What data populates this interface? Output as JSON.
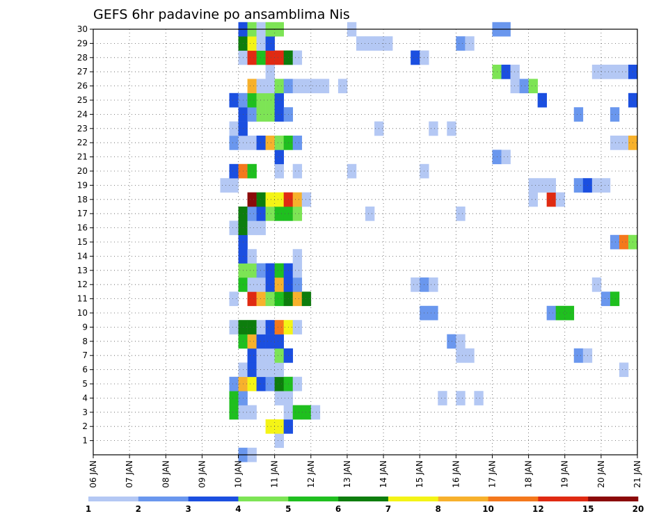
{
  "chart_data": {
    "type": "heatmap",
    "title": "GEFS 6hr padavine po ansamblima Nis",
    "xlabel": "",
    "ylabel": "",
    "x_range": [
      0,
      60
    ],
    "steps_per_day": 4,
    "x_ticks": [
      {
        "label": "06 JAN",
        "step": 0
      },
      {
        "label": "07 JAN",
        "step": 4
      },
      {
        "label": "08 JAN",
        "step": 8
      },
      {
        "label": "09 JAN",
        "step": 12
      },
      {
        "label": "10 JAN",
        "step": 16
      },
      {
        "label": "11 JAN",
        "step": 20
      },
      {
        "label": "12 JAN",
        "step": 24
      },
      {
        "label": "13 JAN",
        "step": 28
      },
      {
        "label": "14 JAN",
        "step": 32
      },
      {
        "label": "15 JAN",
        "step": 36
      },
      {
        "label": "16 JAN",
        "step": 40
      },
      {
        "label": "17 JAN",
        "step": 44
      },
      {
        "label": "18 JAN",
        "step": 48
      },
      {
        "label": "19 JAN",
        "step": 52
      },
      {
        "label": "20 JAN",
        "step": 56
      },
      {
        "label": "21 JAN",
        "step": 60
      }
    ],
    "y_range": [
      0,
      30
    ],
    "y_ticks": [
      1,
      2,
      3,
      4,
      5,
      6,
      7,
      8,
      9,
      10,
      11,
      12,
      13,
      14,
      15,
      16,
      17,
      18,
      19,
      20,
      21,
      22,
      23,
      24,
      25,
      26,
      27,
      28,
      29,
      30
    ],
    "grid": true,
    "colorbar": {
      "colors": [
        "#b4c8f4",
        "#6a97ee",
        "#1b4fe0",
        "#7de455",
        "#1fbf1f",
        "#0d7d0d",
        "#f4f416",
        "#f7b12c",
        "#f4781c",
        "#e02a12",
        "#8b0a0a"
      ],
      "labels": [
        "1",
        "2",
        "3",
        "4",
        "5",
        "6",
        "7",
        "8",
        "10",
        "12",
        "15",
        "20"
      ]
    },
    "cell_encoding": "[step_index, member, color_class 0-10]",
    "cells": [
      [
        16,
        0,
        1
      ],
      [
        17,
        0,
        0
      ],
      [
        20,
        1,
        0
      ],
      [
        19,
        2,
        6
      ],
      [
        20,
        2,
        6
      ],
      [
        21,
        2,
        2
      ],
      [
        15,
        3,
        4
      ],
      [
        16,
        3,
        0
      ],
      [
        17,
        3,
        0
      ],
      [
        21,
        3,
        0
      ],
      [
        22,
        3,
        4
      ],
      [
        23,
        3,
        4
      ],
      [
        24,
        3,
        0
      ],
      [
        15,
        4,
        4
      ],
      [
        16,
        4,
        1
      ],
      [
        20,
        4,
        0
      ],
      [
        21,
        4,
        0
      ],
      [
        38,
        4,
        0
      ],
      [
        40,
        4,
        0
      ],
      [
        42,
        4,
        0
      ],
      [
        15,
        5,
        1
      ],
      [
        16,
        5,
        7
      ],
      [
        17,
        5,
        6
      ],
      [
        18,
        5,
        2
      ],
      [
        19,
        5,
        1
      ],
      [
        20,
        5,
        5
      ],
      [
        21,
        5,
        4
      ],
      [
        22,
        5,
        0
      ],
      [
        16,
        6,
        0
      ],
      [
        17,
        6,
        2
      ],
      [
        18,
        6,
        0
      ],
      [
        19,
        6,
        0
      ],
      [
        20,
        6,
        0
      ],
      [
        58,
        6,
        0
      ],
      [
        17,
        7,
        2
      ],
      [
        18,
        7,
        0
      ],
      [
        19,
        7,
        0
      ],
      [
        20,
        7,
        3
      ],
      [
        21,
        7,
        2
      ],
      [
        40,
        7,
        0
      ],
      [
        41,
        7,
        0
      ],
      [
        53,
        7,
        1
      ],
      [
        54,
        7,
        0
      ],
      [
        16,
        8,
        4
      ],
      [
        17,
        8,
        7
      ],
      [
        18,
        8,
        2
      ],
      [
        19,
        8,
        2
      ],
      [
        20,
        8,
        2
      ],
      [
        39,
        8,
        1
      ],
      [
        40,
        8,
        0
      ],
      [
        15,
        9,
        0
      ],
      [
        16,
        9,
        5
      ],
      [
        17,
        9,
        5
      ],
      [
        18,
        9,
        0
      ],
      [
        19,
        9,
        2
      ],
      [
        20,
        9,
        8
      ],
      [
        21,
        9,
        6
      ],
      [
        22,
        9,
        0
      ],
      [
        36,
        10,
        1
      ],
      [
        37,
        10,
        1
      ],
      [
        50,
        10,
        1
      ],
      [
        51,
        10,
        4
      ],
      [
        52,
        10,
        4
      ],
      [
        15,
        11,
        0
      ],
      [
        17,
        11,
        9
      ],
      [
        18,
        11,
        7
      ],
      [
        19,
        11,
        3
      ],
      [
        20,
        11,
        4
      ],
      [
        21,
        11,
        5
      ],
      [
        22,
        11,
        7
      ],
      [
        23,
        11,
        5
      ],
      [
        56,
        11,
        1
      ],
      [
        57,
        11,
        4
      ],
      [
        16,
        12,
        4
      ],
      [
        17,
        12,
        0
      ],
      [
        18,
        12,
        0
      ],
      [
        19,
        12,
        2
      ],
      [
        20,
        12,
        7
      ],
      [
        21,
        12,
        2
      ],
      [
        22,
        12,
        1
      ],
      [
        35,
        12,
        0
      ],
      [
        36,
        12,
        1
      ],
      [
        37,
        12,
        0
      ],
      [
        55,
        12,
        0
      ],
      [
        16,
        13,
        3
      ],
      [
        17,
        13,
        3
      ],
      [
        18,
        13,
        1
      ],
      [
        19,
        13,
        2
      ],
      [
        20,
        13,
        4
      ],
      [
        21,
        13,
        2
      ],
      [
        22,
        13,
        0
      ],
      [
        16,
        14,
        2
      ],
      [
        17,
        14,
        0
      ],
      [
        22,
        14,
        0
      ],
      [
        16,
        15,
        2
      ],
      [
        57,
        15,
        1
      ],
      [
        58,
        15,
        8
      ],
      [
        59,
        15,
        3
      ],
      [
        15,
        16,
        0
      ],
      [
        16,
        16,
        5
      ],
      [
        17,
        16,
        0
      ],
      [
        18,
        16,
        0
      ],
      [
        16,
        17,
        5
      ],
      [
        17,
        17,
        1
      ],
      [
        18,
        17,
        2
      ],
      [
        19,
        17,
        3
      ],
      [
        20,
        17,
        4
      ],
      [
        21,
        17,
        4
      ],
      [
        22,
        17,
        3
      ],
      [
        30,
        17,
        0
      ],
      [
        40,
        17,
        0
      ],
      [
        17,
        18,
        10
      ],
      [
        18,
        18,
        5
      ],
      [
        19,
        18,
        6
      ],
      [
        20,
        18,
        6
      ],
      [
        21,
        18,
        9
      ],
      [
        22,
        18,
        7
      ],
      [
        23,
        18,
        0
      ],
      [
        48,
        18,
        0
      ],
      [
        50,
        18,
        9
      ],
      [
        51,
        18,
        0
      ],
      [
        14,
        19,
        0
      ],
      [
        15,
        19,
        0
      ],
      [
        48,
        19,
        0
      ],
      [
        49,
        19,
        0
      ],
      [
        50,
        19,
        0
      ],
      [
        53,
        19,
        1
      ],
      [
        54,
        19,
        2
      ],
      [
        55,
        19,
        0
      ],
      [
        56,
        19,
        0
      ],
      [
        15,
        20,
        2
      ],
      [
        16,
        20,
        8
      ],
      [
        17,
        20,
        4
      ],
      [
        20,
        20,
        0
      ],
      [
        22,
        20,
        0
      ],
      [
        28,
        20,
        0
      ],
      [
        36,
        20,
        0
      ],
      [
        20,
        21,
        2
      ],
      [
        44,
        21,
        1
      ],
      [
        45,
        21,
        0
      ],
      [
        15,
        22,
        1
      ],
      [
        16,
        22,
        0
      ],
      [
        17,
        22,
        0
      ],
      [
        18,
        22,
        2
      ],
      [
        19,
        22,
        7
      ],
      [
        20,
        22,
        3
      ],
      [
        21,
        22,
        4
      ],
      [
        22,
        22,
        1
      ],
      [
        57,
        22,
        0
      ],
      [
        58,
        22,
        0
      ],
      [
        59,
        22,
        7
      ],
      [
        15,
        23,
        0
      ],
      [
        16,
        23,
        2
      ],
      [
        31,
        23,
        0
      ],
      [
        37,
        23,
        0
      ],
      [
        39,
        23,
        0
      ],
      [
        16,
        24,
        2
      ],
      [
        17,
        24,
        1
      ],
      [
        18,
        24,
        3
      ],
      [
        19,
        24,
        3
      ],
      [
        20,
        24,
        2
      ],
      [
        21,
        24,
        1
      ],
      [
        53,
        24,
        1
      ],
      [
        57,
        24,
        1
      ],
      [
        15,
        25,
        2
      ],
      [
        16,
        25,
        1
      ],
      [
        17,
        25,
        4
      ],
      [
        18,
        25,
        3
      ],
      [
        19,
        25,
        3
      ],
      [
        20,
        25,
        2
      ],
      [
        49,
        25,
        2
      ],
      [
        59,
        25,
        2
      ],
      [
        17,
        26,
        7
      ],
      [
        18,
        26,
        0
      ],
      [
        19,
        26,
        0
      ],
      [
        20,
        26,
        3
      ],
      [
        21,
        26,
        1
      ],
      [
        22,
        26,
        0
      ],
      [
        23,
        26,
        0
      ],
      [
        24,
        26,
        0
      ],
      [
        25,
        26,
        0
      ],
      [
        27,
        26,
        0
      ],
      [
        46,
        26,
        0
      ],
      [
        47,
        26,
        1
      ],
      [
        48,
        26,
        3
      ],
      [
        19,
        27,
        0
      ],
      [
        44,
        27,
        3
      ],
      [
        45,
        27,
        2
      ],
      [
        46,
        27,
        0
      ],
      [
        55,
        27,
        0
      ],
      [
        56,
        27,
        0
      ],
      [
        57,
        27,
        0
      ],
      [
        58,
        27,
        0
      ],
      [
        59,
        27,
        2
      ],
      [
        16,
        28,
        0
      ],
      [
        17,
        28,
        9
      ],
      [
        18,
        28,
        4
      ],
      [
        19,
        28,
        9
      ],
      [
        20,
        28,
        9
      ],
      [
        21,
        28,
        5
      ],
      [
        22,
        28,
        0
      ],
      [
        35,
        28,
        2
      ],
      [
        36,
        28,
        0
      ],
      [
        16,
        29,
        5
      ],
      [
        17,
        29,
        6
      ],
      [
        18,
        29,
        0
      ],
      [
        19,
        29,
        2
      ],
      [
        29,
        29,
        0
      ],
      [
        30,
        29,
        0
      ],
      [
        31,
        29,
        0
      ],
      [
        32,
        29,
        0
      ],
      [
        40,
        29,
        1
      ],
      [
        41,
        29,
        0
      ],
      [
        16,
        30,
        2
      ],
      [
        17,
        30,
        3
      ],
      [
        18,
        30,
        0
      ],
      [
        19,
        30,
        3
      ],
      [
        20,
        30,
        3
      ],
      [
        28,
        30,
        0
      ],
      [
        44,
        30,
        1
      ],
      [
        45,
        30,
        1
      ]
    ]
  }
}
